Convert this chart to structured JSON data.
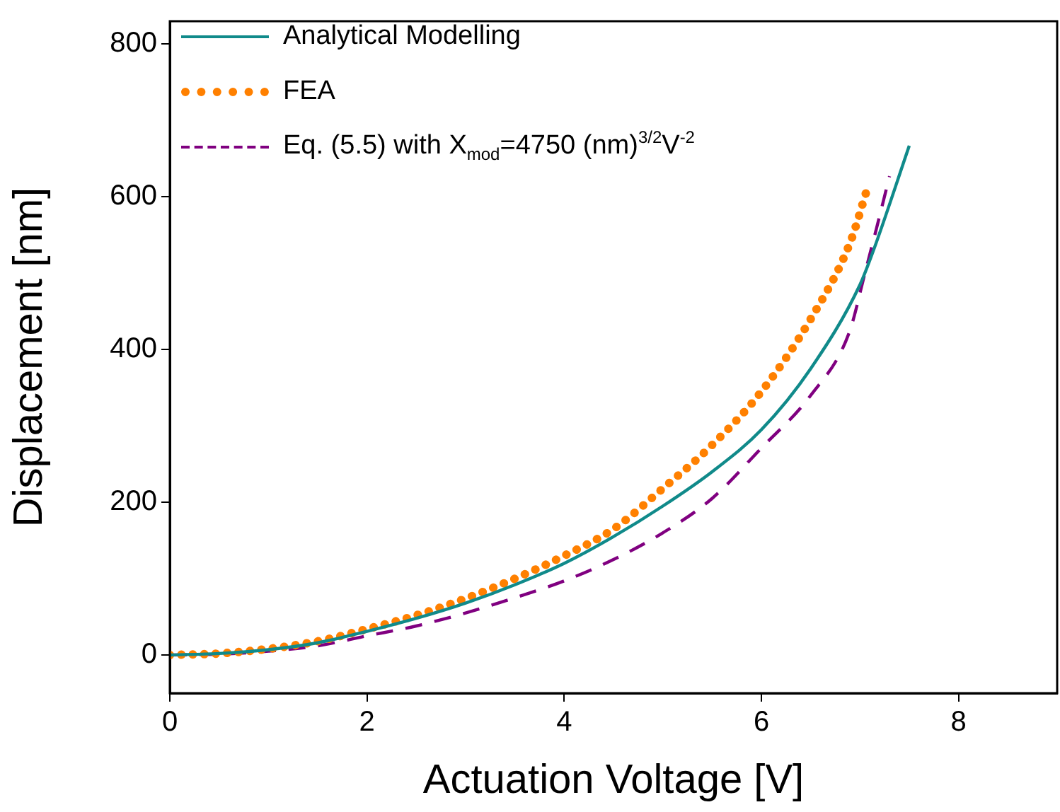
{
  "chart_data": {
    "type": "line",
    "xlabel": "Actuation Voltage [V]",
    "ylabel": "Displacement [nm]",
    "xlim": [
      0,
      9
    ],
    "xticks": [
      0,
      2,
      4,
      6,
      8
    ],
    "ylim": [
      -50,
      830
    ],
    "yticks": [
      0,
      200,
      400,
      600,
      800
    ],
    "grid": false,
    "legend": "top left",
    "marker": "none",
    "series": [
      {
        "name": "Analytical Modelling",
        "color": "#108a8a",
        "line_style": "solid",
        "x": [
          0,
          0.5,
          1,
          1.5,
          2,
          2.5,
          3,
          3.5,
          4,
          4.5,
          5,
          5.5,
          6,
          6.5,
          7,
          7.14,
          7.5
        ],
        "values": [
          0,
          2,
          7,
          16,
          31,
          48,
          68,
          92,
          120,
          155,
          195,
          240,
          295,
          375,
          485,
          531,
          667
        ]
      },
      {
        "name": "FEA",
        "color": "#ff8000",
        "line_style": "dotted",
        "x": [
          0,
          0.5,
          1,
          1.5,
          2,
          2.5,
          3,
          3.5,
          4,
          4.5,
          5,
          5.5,
          6,
          6.5,
          6.9,
          7.07
        ],
        "values": [
          0,
          2,
          8,
          18,
          34,
          52,
          74,
          100,
          130,
          165,
          218,
          275,
          345,
          440,
          540,
          609
        ]
      },
      {
        "name": "Eq. (5.5) with X$_{mod}$=4750 (nm)$^{3/2}$V$^{-2}$",
        "color": "#800080",
        "line_style": "dashed",
        "x": [
          0,
          0.5,
          1,
          1.5,
          2,
          2.5,
          3,
          3.5,
          4,
          4.5,
          5,
          5.5,
          6,
          6.5,
          6.89,
          7.05,
          7.17,
          7.3
        ],
        "values": [
          0,
          1,
          5,
          12,
          25,
          38,
          55,
          75,
          97,
          125,
          160,
          205,
          271,
          340,
          422,
          500,
          560,
          627
        ]
      }
    ]
  }
}
